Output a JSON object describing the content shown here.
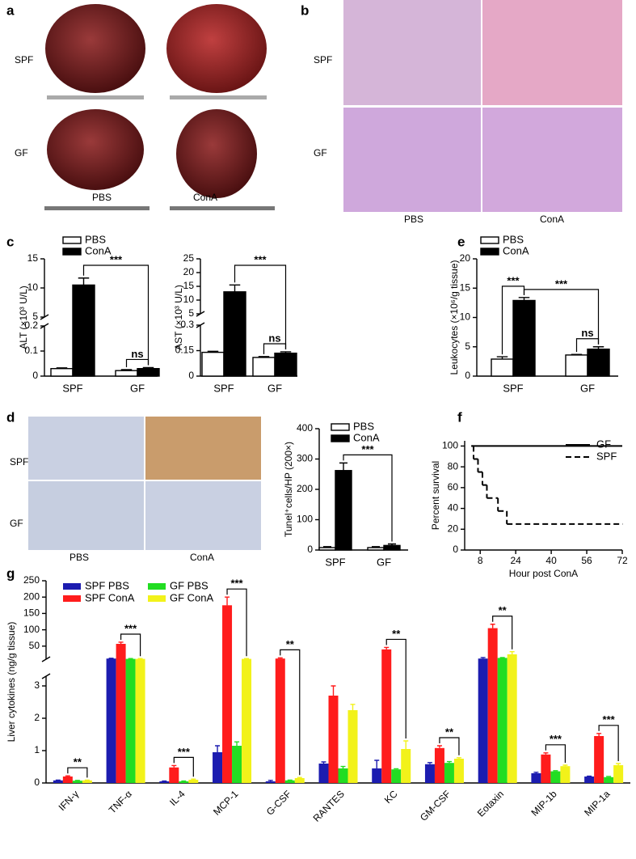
{
  "figure": {
    "panel_labels": [
      "a",
      "b",
      "c",
      "d",
      "e",
      "f",
      "g"
    ]
  },
  "images": [
    {
      "row_labels": [
        "SPF",
        "GF"
      ],
      "col_labels": [
        "PBS",
        "ConA"
      ]
    },
    {
      "row_labels": [
        "SPF",
        "GF"
      ],
      "col_labels": [
        "PBS",
        "ConA"
      ]
    },
    {
      "row_labels": [
        "SPF",
        "GF"
      ],
      "col_labels": [
        "PBS",
        "ConA"
      ]
    }
  ],
  "chart_data": [
    {
      "type": "bar",
      "ylabel": "ALT (×10³ U/L)",
      "categories": [
        "SPF",
        "GF"
      ],
      "series": [
        {
          "name": "PBS",
          "color": "#ffffff",
          "values": [
            0.03,
            0.022
          ],
          "errors": [
            0.003,
            0.004
          ]
        },
        {
          "name": "ConA",
          "color": "#000000",
          "values": [
            10.5,
            0.03
          ],
          "errors": [
            1.2,
            0.004
          ]
        }
      ],
      "ylim": [
        0,
        15
      ],
      "axis_break": [
        0.2,
        5
      ],
      "yticks": [
        0,
        0.1,
        0.2,
        5,
        10,
        15
      ],
      "annotations": [
        "***",
        "ns"
      ]
    },
    {
      "type": "bar",
      "ylabel": "AST (×10³ U/L)",
      "categories": [
        "SPF",
        "GF"
      ],
      "series": [
        {
          "color": "#ffffff",
          "values": [
            0.14,
            0.11
          ],
          "errors": [
            0.006,
            0.005
          ]
        },
        {
          "color": "#000000",
          "values": [
            13,
            0.135
          ],
          "errors": [
            2.5,
            0.008
          ]
        }
      ],
      "ylim": [
        0,
        25
      ],
      "axis_break": [
        0.3,
        5
      ],
      "yticks": [
        0,
        0.15,
        0.3,
        5,
        10,
        15,
        20,
        25
      ],
      "annotations": [
        "***",
        "ns"
      ]
    },
    {
      "type": "bar",
      "ylabel": "Leukocytes (×10⁶/g tissue)",
      "categories": [
        "SPF",
        "GF"
      ],
      "series": [
        {
          "name": "PBS",
          "color": "#ffffff",
          "values": [
            2.9,
            3.6
          ],
          "errors": [
            0.4,
            0.1
          ]
        },
        {
          "name": "ConA",
          "color": "#000000",
          "values": [
            12.9,
            4.6
          ],
          "errors": [
            0.5,
            0.4
          ]
        }
      ],
      "ylim": [
        0,
        20
      ],
      "yticks": [
        0,
        5,
        10,
        15,
        20
      ],
      "annotations": [
        "***",
        "***",
        "ns"
      ]
    },
    {
      "type": "bar",
      "ylabel": "Tunel⁺cells/HP (200×)",
      "categories": [
        "SPF",
        "GF"
      ],
      "series": [
        {
          "name": "PBS",
          "color": "#ffffff",
          "values": [
            8,
            8
          ],
          "errors": [
            3,
            3
          ]
        },
        {
          "name": "ConA",
          "color": "#000000",
          "values": [
            262,
            15
          ],
          "errors": [
            25,
            5
          ]
        }
      ],
      "ylim": [
        0,
        400
      ],
      "yticks": [
        0,
        100,
        200,
        300,
        400
      ],
      "annotations": [
        "***"
      ]
    },
    {
      "type": "line",
      "step": true,
      "xlabel": "Hour post ConA",
      "ylabel": "Percent survival",
      "series": [
        {
          "name": "GF",
          "color": "#000000",
          "dashed": false,
          "x": [
            4,
            72
          ],
          "values": [
            100,
            100
          ]
        },
        {
          "name": "SPF",
          "color": "#000000",
          "dashed": true,
          "x": [
            4,
            5,
            7,
            9,
            11,
            16,
            20,
            72
          ],
          "values": [
            100,
            87.5,
            75,
            62.5,
            50,
            37.5,
            25,
            25
          ]
        }
      ],
      "xlim": [
        1,
        72
      ],
      "xticks": [
        8,
        24,
        40,
        56,
        72
      ],
      "ylim": [
        0,
        105
      ],
      "yticks": [
        0,
        20,
        40,
        60,
        80,
        100
      ]
    },
    {
      "type": "bar",
      "ylabel": "Liver cytokines (ng/g tissue)",
      "categories": [
        "IFN-γ",
        "TNF-α",
        "IL-4",
        "MCP-1",
        "G-CSF",
        "RANTES",
        "KC",
        "GM-CSF",
        "Eotaxin",
        "MIP-1b",
        "MIP-1a"
      ],
      "series": [
        {
          "name": "SPF PBS",
          "color": "#1c1cb0",
          "values": [
            0.08,
            12,
            0.05,
            0.95,
            0.05,
            0.6,
            0.45,
            0.58,
            12,
            0.3,
            0.2
          ],
          "errors": [
            0.01,
            1,
            0.01,
            0.2,
            0.03,
            0.05,
            0.25,
            0.05,
            3,
            0.03,
            0.01
          ]
        },
        {
          "name": "SPF ConA",
          "color": "#ff1c1c",
          "values": [
            0.2,
            57,
            0.48,
            175,
            12,
            2.7,
            40,
            1.08,
            105,
            0.88,
            1.45
          ],
          "errors": [
            0.02,
            5,
            0.06,
            25,
            2,
            0.3,
            6,
            0.07,
            12,
            0.05,
            0.08
          ]
        },
        {
          "name": "GF PBS",
          "color": "#22dd22",
          "values": [
            0.07,
            11,
            0.05,
            1.15,
            0.08,
            0.45,
            0.42,
            0.62,
            14,
            0.36,
            0.18
          ],
          "errors": [
            0.01,
            1,
            0.01,
            0.12,
            0.01,
            0.06,
            0.02,
            0.04,
            1,
            0.02,
            0.02
          ]
        },
        {
          "name": "GF ConA",
          "color": "#f2f21a",
          "values": [
            0.08,
            11,
            0.1,
            11,
            0.15,
            2.25,
            1.05,
            0.75,
            25,
            0.52,
            0.55
          ],
          "errors": [
            0.01,
            1,
            0.02,
            1,
            0.02,
            0.18,
            0.25,
            0.03,
            8,
            0.03,
            0.05
          ]
        }
      ],
      "ylim": [
        0,
        250
      ],
      "axis_break": [
        3.3,
        10
      ],
      "yticks": [
        0,
        1,
        2,
        3,
        50,
        100,
        150,
        200,
        250
      ],
      "annotations": [
        "**",
        "***",
        "***",
        "***",
        "**",
        "**",
        "**",
        "**",
        "***",
        "***"
      ]
    }
  ]
}
